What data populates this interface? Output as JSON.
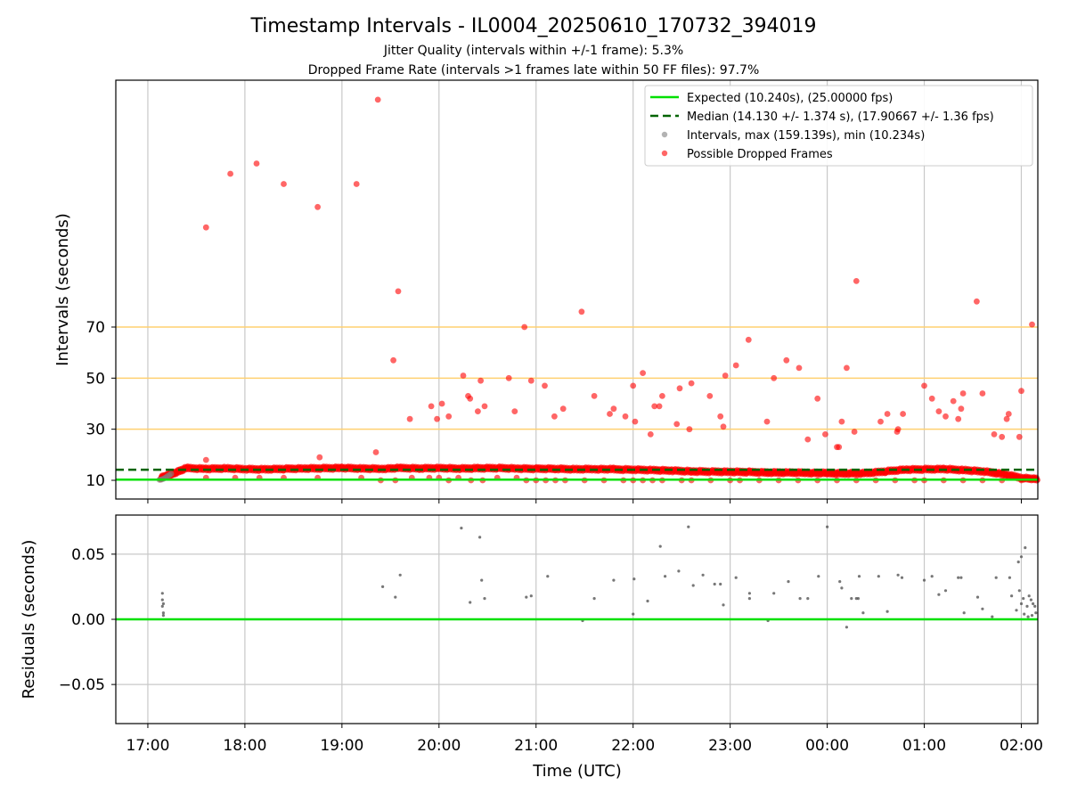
{
  "title": "Timestamp Intervals - IL0004_20250610_170732_394019",
  "subtitle_1": "Jitter Quality (intervals within +/-1 frame): 5.3%",
  "subtitle_2": "Dropped Frame Rate (intervals >1 frames late within 50 FF files): 97.7%",
  "colors": {
    "expected": "#00e000",
    "median": "#006400",
    "dropped": "#ff0000",
    "intervals": "#808080",
    "threshold": "#ffd070",
    "grid": "#c8c8c8"
  },
  "chart_data": [
    {
      "type": "scatter",
      "panel": "top",
      "ylabel": "Intervals (seconds)",
      "xlabel": "",
      "yticks": [
        10,
        30,
        50,
        70
      ],
      "xtick_labels": [
        "17:00",
        "18:00",
        "19:00",
        "20:00",
        "21:00",
        "22:00",
        "23:00",
        "00:00",
        "01:00",
        "02:00"
      ],
      "xlim_hours": [
        16.67,
        26.17
      ],
      "grid": true,
      "legend_position": "upper-right",
      "threshold_lines": [
        30,
        50,
        70
      ],
      "expected_line": 10.24,
      "median_line": 14.13,
      "legend": [
        "Expected (10.240s), (25.00000 fps)",
        "Median (14.130 +/- 1.374 s), (17.90667 +/- 1.36 fps)",
        "Intervals, max (159.139s), min (10.234s)",
        "Possible Dropped Frames"
      ],
      "baseline_series": {
        "name": "Possible Dropped Frames",
        "hours": [
          17.13,
          17.25,
          17.4,
          17.6,
          17.8,
          18.0,
          18.2,
          18.4,
          18.6,
          18.8,
          19.0,
          19.2,
          19.4,
          19.6,
          19.8,
          20.0,
          20.2,
          20.4,
          20.6,
          20.8,
          21.0,
          21.2,
          21.4,
          21.6,
          21.8,
          22.0,
          22.2,
          22.4,
          22.6,
          22.8,
          23.0,
          23.2,
          23.4,
          23.6,
          23.8,
          24.0,
          24.2,
          24.4,
          24.6,
          24.8,
          25.0,
          25.2,
          25.4,
          25.6,
          25.8,
          26.0,
          26.17
        ],
        "values": [
          11.0,
          12.5,
          14.8,
          14.5,
          14.7,
          14.4,
          14.3,
          14.5,
          14.6,
          14.7,
          14.8,
          14.6,
          14.5,
          14.8,
          14.7,
          14.8,
          14.6,
          14.7,
          14.8,
          14.6,
          14.5,
          14.5,
          14.3,
          14.4,
          14.3,
          14.2,
          14.0,
          13.8,
          13.5,
          13.4,
          13.3,
          13.2,
          13.0,
          13.0,
          12.9,
          12.8,
          12.7,
          12.8,
          13.5,
          14.2,
          14.3,
          14.4,
          14.0,
          13.5,
          12.5,
          11.0,
          10.4
        ]
      },
      "outliers": {
        "hours": [
          17.6,
          17.85,
          18.12,
          18.4,
          18.75,
          19.15,
          19.37,
          19.58,
          19.53,
          19.35,
          17.6,
          18.77,
          19.7,
          19.92,
          19.98,
          20.03,
          20.1,
          20.25,
          20.3,
          20.32,
          20.4,
          20.43,
          20.47,
          20.72,
          20.78,
          20.88,
          20.95,
          21.09,
          21.19,
          21.28,
          21.47,
          21.6,
          21.76,
          21.8,
          21.92,
          22.0,
          22.02,
          22.1,
          22.18,
          22.22,
          22.27,
          22.3,
          22.45,
          22.48,
          22.58,
          22.6,
          22.79,
          22.9,
          22.93,
          22.95,
          23.06,
          23.19,
          23.38,
          23.45,
          23.58,
          23.71,
          23.8,
          23.9,
          23.98,
          24.1,
          24.12,
          24.15,
          24.2,
          24.28,
          24.3,
          24.55,
          24.62,
          24.72,
          24.73,
          24.78,
          25.0,
          25.08,
          25.15,
          25.22,
          25.3,
          25.35,
          25.38,
          25.4,
          25.54,
          25.6,
          25.72,
          25.8,
          25.85,
          25.87,
          25.98,
          26.0,
          26.11,
          17.6,
          17.9,
          18.15,
          18.4,
          18.75,
          19.2,
          19.4,
          19.55,
          19.72,
          19.9,
          20.0,
          20.1,
          20.2,
          20.33,
          20.45,
          20.6,
          20.8,
          20.9,
          21.0,
          21.1,
          21.2,
          21.3,
          21.5,
          21.7,
          21.9,
          22.0,
          22.1,
          22.2,
          22.3,
          22.5,
          22.6,
          22.8,
          23.0,
          23.1,
          23.3,
          23.5,
          23.7,
          23.9,
          24.1,
          24.3,
          24.5,
          24.7,
          24.9,
          25.0,
          25.2,
          25.4,
          25.6,
          25.8,
          26.0
        ],
        "values": [
          109,
          130,
          134,
          126,
          117,
          126,
          159,
          84,
          57,
          21,
          18,
          19,
          34,
          39,
          34,
          40,
          35,
          51,
          43,
          42,
          37,
          49,
          39,
          50,
          37,
          70,
          49,
          47,
          35,
          38,
          76,
          43,
          36,
          38,
          35,
          47,
          33,
          52,
          28,
          39,
          39,
          43,
          32,
          46,
          30,
          48,
          43,
          35,
          31,
          51,
          55,
          65,
          33,
          50,
          57,
          54,
          26,
          42,
          28,
          23,
          23,
          33,
          54,
          29,
          88,
          33,
          36,
          29,
          30,
          36,
          47,
          42,
          37,
          35,
          41,
          34,
          38,
          44,
          80,
          44,
          28,
          27,
          34,
          36,
          27,
          45,
          71,
          11,
          11,
          11,
          11,
          11,
          11,
          10,
          10,
          11,
          11,
          11,
          10,
          11,
          10,
          10,
          11,
          11,
          10,
          10,
          10,
          10,
          10,
          10,
          10,
          10,
          10,
          10,
          10,
          10,
          10,
          10,
          10,
          10,
          10,
          10,
          10,
          10,
          10,
          10,
          10,
          10,
          10,
          10,
          10,
          10,
          10,
          10,
          10,
          10
        ]
      },
      "intervals_series": {
        "hours": [
          17.12,
          17.14,
          17.16,
          17.18,
          17.2,
          17.22,
          17.24
        ],
        "values": [
          10.25,
          10.3,
          10.6,
          11.0,
          11.5,
          12.0,
          12.5
        ]
      }
    },
    {
      "type": "scatter",
      "panel": "bottom",
      "ylabel": "Residuals (seconds)",
      "xlabel": "Time (UTC)",
      "yticks": [
        -0.05,
        0.0,
        0.05
      ],
      "ytick_labels": [
        "−0.05",
        "0.00",
        "0.05"
      ],
      "ylim": [
        -0.08,
        0.08
      ],
      "xlim_hours": [
        16.67,
        26.17
      ],
      "grid": true,
      "zero_line": 0,
      "residuals": {
        "hours": [
          17.15,
          17.15,
          17.15,
          17.16,
          17.16,
          17.16,
          19.42,
          19.55,
          19.6,
          20.23,
          20.32,
          20.42,
          20.44,
          20.47,
          20.9,
          20.95,
          21.12,
          21.48,
          21.6,
          21.8,
          22.0,
          22.01,
          22.15,
          22.28,
          22.33,
          22.47,
          22.57,
          22.62,
          22.72,
          22.84,
          22.9,
          22.93,
          23.06,
          23.2,
          23.2,
          23.39,
          23.45,
          23.6,
          23.72,
          23.8,
          23.91,
          24.0,
          24.13,
          24.15,
          24.2,
          24.25,
          24.3,
          24.32,
          24.33,
          24.37,
          24.53,
          24.62,
          24.73,
          24.77,
          25.0,
          25.08,
          25.15,
          25.22,
          25.35,
          25.38,
          25.41,
          25.55,
          25.6,
          25.7,
          25.74,
          25.88,
          25.9,
          25.95,
          25.98,
          26.0,
          26.02,
          26.04,
          26.06,
          26.08,
          26.1,
          26.12,
          26.14,
          26.15,
          25.97,
          26.0,
          26.03,
          26.07,
          26.11
        ],
        "values": [
          0.02,
          0.015,
          0.01,
          0.005,
          0.012,
          0.003,
          0.025,
          0.017,
          0.034,
          0.07,
          0.013,
          0.063,
          0.03,
          0.016,
          0.017,
          0.018,
          0.033,
          -0.001,
          0.016,
          0.03,
          0.004,
          0.031,
          0.014,
          0.056,
          0.033,
          0.037,
          0.071,
          0.026,
          0.034,
          0.027,
          0.027,
          0.011,
          0.032,
          0.016,
          0.02,
          -0.001,
          0.02,
          0.029,
          0.016,
          0.016,
          0.033,
          0.071,
          0.029,
          0.024,
          -0.006,
          0.016,
          0.016,
          0.016,
          0.033,
          0.005,
          0.033,
          0.006,
          0.034,
          0.032,
          0.03,
          0.033,
          0.019,
          0.022,
          0.032,
          0.032,
          0.005,
          0.017,
          0.008,
          0.002,
          0.032,
          0.032,
          0.018,
          0.007,
          0.022,
          0.048,
          0.016,
          0.055,
          0.01,
          0.018,
          0.015,
          0.012,
          0.01,
          0.005,
          0.044,
          0.012,
          0.004,
          0.002,
          0.003
        ]
      }
    }
  ]
}
